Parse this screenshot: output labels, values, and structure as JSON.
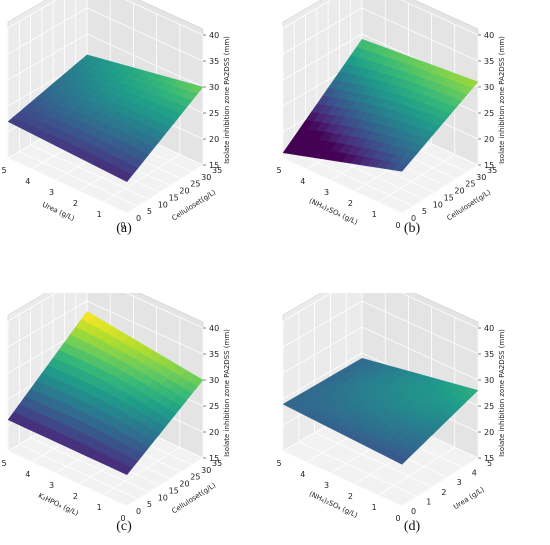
{
  "figure": {
    "captions": [
      "(a)",
      "(b)",
      "(c)",
      "(d)"
    ]
  },
  "chart_data": [
    {
      "type": "surface",
      "panel": "(a)",
      "xlabel": "Urea (g/L)",
      "ylabel": "Celluloset(g/L)",
      "zlabel": "Isolate inhibition zone PA2DSS (mm)",
      "x_ticks": [
        "5",
        "4",
        "3",
        "2",
        "1",
        "0"
      ],
      "y_ticks": [
        "0",
        "5",
        "10",
        "15",
        "20",
        "25",
        "30",
        "35"
      ],
      "z_ticks": [
        "15",
        "20",
        "25",
        "30",
        "35",
        "40"
      ],
      "xlim": [
        0,
        5
      ],
      "ylim": [
        0,
        35
      ],
      "zlim": [
        15,
        40
      ],
      "colormap": "viridis",
      "corner_z": {
        "x_max_y_min": 22,
        "x_min_y_min": 21,
        "x_max_y_max": 26,
        "x_min_y_max": 30
      }
    },
    {
      "type": "surface",
      "panel": "(b)",
      "xlabel": "(NH₄)₂SO₄ (g/L)",
      "ylabel": "Celluloset(g/L)",
      "zlabel": "Isolate inhibition zone PA2DSS (mm)",
      "x_ticks": [
        "5",
        "4",
        "3",
        "2",
        "1",
        "0"
      ],
      "y_ticks": [
        "0",
        "5",
        "10",
        "15",
        "20",
        "25",
        "30",
        "35"
      ],
      "z_ticks": [
        "15",
        "20",
        "25",
        "30",
        "35",
        "40"
      ],
      "xlim": [
        0,
        5
      ],
      "ylim": [
        0,
        35
      ],
      "zlim": [
        15,
        40
      ],
      "colormap": "viridis",
      "corner_z": {
        "x_max_y_min": 16,
        "x_min_y_min": 23,
        "x_max_y_max": 29,
        "x_min_y_max": 31
      }
    },
    {
      "type": "surface",
      "panel": "(c)",
      "xlabel": "K₂HPO₄ (g/L)",
      "ylabel": "Celluloset(g/L)",
      "zlabel": "Isolate inhibition zone PA2DSS (mm)",
      "x_ticks": [
        "5",
        "4",
        "3",
        "2",
        "1",
        "0"
      ],
      "y_ticks": [
        "0",
        "5",
        "10",
        "15",
        "20",
        "25",
        "30",
        "35"
      ],
      "z_ticks": [
        "15",
        "20",
        "25",
        "30",
        "35",
        "40"
      ],
      "xlim": [
        0,
        5
      ],
      "ylim": [
        0,
        35
      ],
      "zlim": [
        15,
        40
      ],
      "colormap": "viridis",
      "corner_z": {
        "x_max_y_min": 21,
        "x_min_y_min": 21,
        "x_max_y_max": 33,
        "x_min_y_max": 30
      }
    },
    {
      "type": "surface",
      "panel": "(d)",
      "xlabel": "(NH₄)₂SO₄ (g/L)",
      "ylabel": "Urea (g/L)",
      "zlabel": "Isolate inhibition zone PA2DSS (mm)",
      "x_ticks": [
        "5",
        "4",
        "3",
        "2",
        "1",
        "0"
      ],
      "y_ticks": [
        "0",
        "1",
        "2",
        "3",
        "4",
        "5"
      ],
      "z_ticks": [
        "15",
        "20",
        "25",
        "30",
        "35",
        "40"
      ],
      "xlim": [
        0,
        5
      ],
      "ylim": [
        0,
        5
      ],
      "zlim": [
        15,
        40
      ],
      "colormap": "viridis",
      "corner_z": {
        "x_max_y_min": 24,
        "x_min_y_min": 23,
        "x_max_y_max": 24,
        "x_min_y_max": 28
      }
    }
  ]
}
